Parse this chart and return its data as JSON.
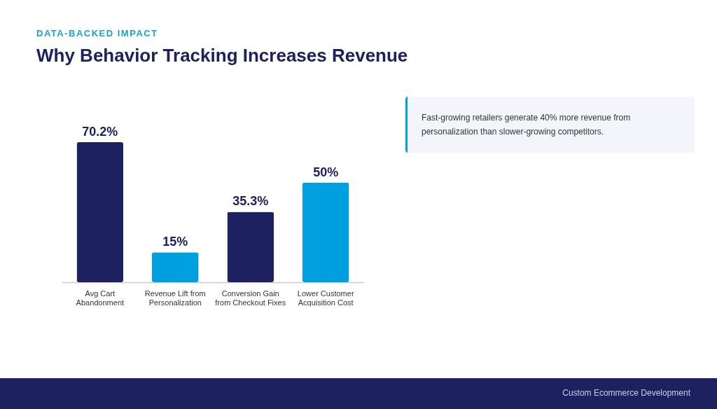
{
  "chart_data": {
    "type": "bar",
    "subtitle": "DATA-BACKED IMPACT",
    "title": "Why Behavior Tracking Increases Revenue",
    "categories": [
      "Avg Cart Abandonment",
      "Revenue Lift from Personalization",
      "Conversion Gain from Checkout Fixes",
      "Lower Customer Acquisition Cost"
    ],
    "values": [
      70.2,
      15,
      35.3,
      50
    ],
    "colors": [
      "#1e2160",
      "#009fdf",
      "#1e2160",
      "#009fdf"
    ],
    "value_labels": [
      "70.2%",
      "15%",
      "35.3%",
      "50%"
    ],
    "annotations": [
      "Fast-growing retailers generate 40% more revenue from personalization than slower-growing competitors.",
      "Custom Ecommerce Development"
    ]
  }
}
